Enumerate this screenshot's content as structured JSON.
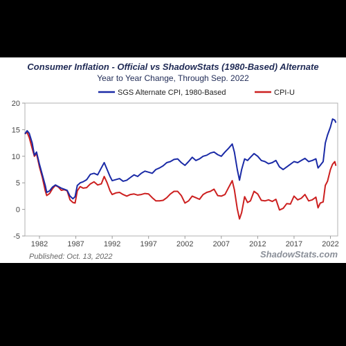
{
  "chart_data": {
    "type": "line",
    "title": "Consumer Inflation - Official vs ShadowStats (1980-Based) Alternate",
    "subtitle": "Year to Year Change, Through Sep. 2022",
    "xlabel": "",
    "ylabel": "",
    "x_ticks": [
      "1982",
      "1987",
      "1992",
      "1997",
      "2002",
      "2007",
      "2012",
      "2017",
      "2022"
    ],
    "y_ticks": [
      "20",
      "15",
      "10",
      "5",
      "0",
      "-5"
    ],
    "xlim": [
      1980,
      2023
    ],
    "ylim": [
      -5,
      20
    ],
    "grid": false,
    "legend_placement": "top",
    "footer_left": "Published: Oct. 13, 2022",
    "footer_right": "ShadowStats.com",
    "series": [
      {
        "name": "SGS Alternate CPI, 1980-Based",
        "color": "#1a2aa6",
        "points": [
          [
            1980.0,
            14.2
          ],
          [
            1980.3,
            14.8
          ],
          [
            1980.6,
            14.3
          ],
          [
            1981.0,
            12.5
          ],
          [
            1981.3,
            10.2
          ],
          [
            1981.6,
            10.8
          ],
          [
            1982.0,
            8.5
          ],
          [
            1982.4,
            6.5
          ],
          [
            1982.8,
            4.5
          ],
          [
            1983.0,
            3.2
          ],
          [
            1983.4,
            3.5
          ],
          [
            1983.8,
            4.2
          ],
          [
            1984.2,
            4.6
          ],
          [
            1984.6,
            4.3
          ],
          [
            1985.0,
            4.0
          ],
          [
            1985.4,
            3.8
          ],
          [
            1985.8,
            3.6
          ],
          [
            1986.2,
            2.5
          ],
          [
            1986.6,
            2.0
          ],
          [
            1986.9,
            2.4
          ],
          [
            1987.2,
            4.5
          ],
          [
            1987.6,
            5.0
          ],
          [
            1988.0,
            5.2
          ],
          [
            1988.5,
            5.6
          ],
          [
            1989.0,
            6.6
          ],
          [
            1989.5,
            6.8
          ],
          [
            1990.0,
            6.5
          ],
          [
            1990.5,
            7.8
          ],
          [
            1990.9,
            8.8
          ],
          [
            1991.3,
            7.5
          ],
          [
            1991.7,
            6.2
          ],
          [
            1992.0,
            5.4
          ],
          [
            1992.5,
            5.6
          ],
          [
            1993.0,
            5.8
          ],
          [
            1993.5,
            5.3
          ],
          [
            1994.0,
            5.5
          ],
          [
            1994.5,
            6.0
          ],
          [
            1995.0,
            6.5
          ],
          [
            1995.5,
            6.2
          ],
          [
            1996.0,
            6.8
          ],
          [
            1996.5,
            7.2
          ],
          [
            1997.0,
            7.0
          ],
          [
            1997.5,
            6.8
          ],
          [
            1998.0,
            7.5
          ],
          [
            1998.5,
            7.8
          ],
          [
            1999.0,
            8.2
          ],
          [
            1999.5,
            8.8
          ],
          [
            2000.0,
            9.0
          ],
          [
            2000.5,
            9.4
          ],
          [
            2001.0,
            9.5
          ],
          [
            2001.5,
            8.8
          ],
          [
            2002.0,
            8.3
          ],
          [
            2002.5,
            9.0
          ],
          [
            2003.0,
            9.8
          ],
          [
            2003.5,
            9.2
          ],
          [
            2004.0,
            9.5
          ],
          [
            2004.5,
            10.0
          ],
          [
            2005.0,
            10.2
          ],
          [
            2005.5,
            10.6
          ],
          [
            2006.0,
            10.8
          ],
          [
            2006.5,
            10.3
          ],
          [
            2007.0,
            10.0
          ],
          [
            2007.5,
            10.8
          ],
          [
            2008.0,
            11.5
          ],
          [
            2008.5,
            12.3
          ],
          [
            2008.8,
            10.8
          ],
          [
            2009.2,
            7.5
          ],
          [
            2009.5,
            5.5
          ],
          [
            2009.8,
            7.5
          ],
          [
            2010.2,
            9.5
          ],
          [
            2010.6,
            9.2
          ],
          [
            2011.0,
            9.8
          ],
          [
            2011.5,
            10.5
          ],
          [
            2012.0,
            10.0
          ],
          [
            2012.5,
            9.2
          ],
          [
            2013.0,
            9.0
          ],
          [
            2013.5,
            8.6
          ],
          [
            2014.0,
            8.8
          ],
          [
            2014.5,
            9.2
          ],
          [
            2015.0,
            8.0
          ],
          [
            2015.5,
            7.5
          ],
          [
            2016.0,
            8.0
          ],
          [
            2016.5,
            8.5
          ],
          [
            2017.0,
            9.0
          ],
          [
            2017.5,
            8.8
          ],
          [
            2018.0,
            9.2
          ],
          [
            2018.5,
            9.6
          ],
          [
            2019.0,
            9.0
          ],
          [
            2019.5,
            9.2
          ],
          [
            2020.0,
            9.5
          ],
          [
            2020.3,
            7.8
          ],
          [
            2020.6,
            8.3
          ],
          [
            2021.0,
            9.0
          ],
          [
            2021.3,
            12.5
          ],
          [
            2021.6,
            14.0
          ],
          [
            2022.0,
            15.5
          ],
          [
            2022.3,
            17.0
          ],
          [
            2022.6,
            16.8
          ],
          [
            2022.75,
            16.3
          ]
        ]
      },
      {
        "name": "CPI-U",
        "color": "#cc1f1f",
        "points": [
          [
            1980.0,
            14.2
          ],
          [
            1980.3,
            14.5
          ],
          [
            1980.6,
            13.5
          ],
          [
            1981.0,
            11.5
          ],
          [
            1981.3,
            10.0
          ],
          [
            1981.6,
            10.5
          ],
          [
            1982.0,
            8.0
          ],
          [
            1982.4,
            6.0
          ],
          [
            1982.8,
            3.5
          ],
          [
            1983.0,
            2.6
          ],
          [
            1983.4,
            3.0
          ],
          [
            1983.8,
            3.9
          ],
          [
            1984.2,
            4.5
          ],
          [
            1984.6,
            4.2
          ],
          [
            1985.0,
            3.6
          ],
          [
            1985.4,
            3.7
          ],
          [
            1985.8,
            3.5
          ],
          [
            1986.2,
            1.8
          ],
          [
            1986.6,
            1.3
          ],
          [
            1986.9,
            1.2
          ],
          [
            1987.2,
            3.5
          ],
          [
            1987.6,
            4.3
          ],
          [
            1988.0,
            4.0
          ],
          [
            1988.5,
            4.1
          ],
          [
            1989.0,
            4.8
          ],
          [
            1989.5,
            5.2
          ],
          [
            1990.0,
            4.6
          ],
          [
            1990.5,
            4.8
          ],
          [
            1990.9,
            6.2
          ],
          [
            1991.3,
            5.0
          ],
          [
            1991.7,
            3.5
          ],
          [
            1992.0,
            2.8
          ],
          [
            1992.5,
            3.1
          ],
          [
            1993.0,
            3.2
          ],
          [
            1993.5,
            2.8
          ],
          [
            1994.0,
            2.5
          ],
          [
            1994.5,
            2.8
          ],
          [
            1995.0,
            2.9
          ],
          [
            1995.5,
            2.7
          ],
          [
            1996.0,
            2.8
          ],
          [
            1996.5,
            3.0
          ],
          [
            1997.0,
            2.9
          ],
          [
            1997.5,
            2.2
          ],
          [
            1998.0,
            1.6
          ],
          [
            1998.5,
            1.6
          ],
          [
            1999.0,
            1.7
          ],
          [
            1999.5,
            2.2
          ],
          [
            2000.0,
            2.9
          ],
          [
            2000.5,
            3.4
          ],
          [
            2001.0,
            3.4
          ],
          [
            2001.5,
            2.6
          ],
          [
            2002.0,
            1.2
          ],
          [
            2002.5,
            1.6
          ],
          [
            2003.0,
            2.5
          ],
          [
            2003.5,
            2.2
          ],
          [
            2004.0,
            1.9
          ],
          [
            2004.5,
            2.8
          ],
          [
            2005.0,
            3.2
          ],
          [
            2005.5,
            3.4
          ],
          [
            2006.0,
            3.8
          ],
          [
            2006.5,
            2.6
          ],
          [
            2007.0,
            2.5
          ],
          [
            2007.5,
            2.8
          ],
          [
            2008.0,
            4.1
          ],
          [
            2008.5,
            5.4
          ],
          [
            2008.8,
            3.7
          ],
          [
            2009.2,
            0.1
          ],
          [
            2009.5,
            -1.8
          ],
          [
            2009.8,
            -0.6
          ],
          [
            2010.2,
            2.4
          ],
          [
            2010.6,
            1.3
          ],
          [
            2011.0,
            1.6
          ],
          [
            2011.5,
            3.4
          ],
          [
            2012.0,
            2.9
          ],
          [
            2012.5,
            1.7
          ],
          [
            2013.0,
            1.6
          ],
          [
            2013.5,
            1.8
          ],
          [
            2014.0,
            1.5
          ],
          [
            2014.5,
            1.9
          ],
          [
            2015.0,
            -0.1
          ],
          [
            2015.5,
            0.2
          ],
          [
            2016.0,
            1.1
          ],
          [
            2016.5,
            1.0
          ],
          [
            2017.0,
            2.5
          ],
          [
            2017.5,
            1.8
          ],
          [
            2018.0,
            2.1
          ],
          [
            2018.5,
            2.8
          ],
          [
            2019.0,
            1.6
          ],
          [
            2019.5,
            1.8
          ],
          [
            2020.0,
            2.3
          ],
          [
            2020.3,
            0.3
          ],
          [
            2020.6,
            1.2
          ],
          [
            2021.0,
            1.4
          ],
          [
            2021.3,
            4.5
          ],
          [
            2021.6,
            5.3
          ],
          [
            2022.0,
            7.5
          ],
          [
            2022.3,
            8.5
          ],
          [
            2022.6,
            9.0
          ],
          [
            2022.75,
            8.2
          ]
        ]
      }
    ]
  }
}
